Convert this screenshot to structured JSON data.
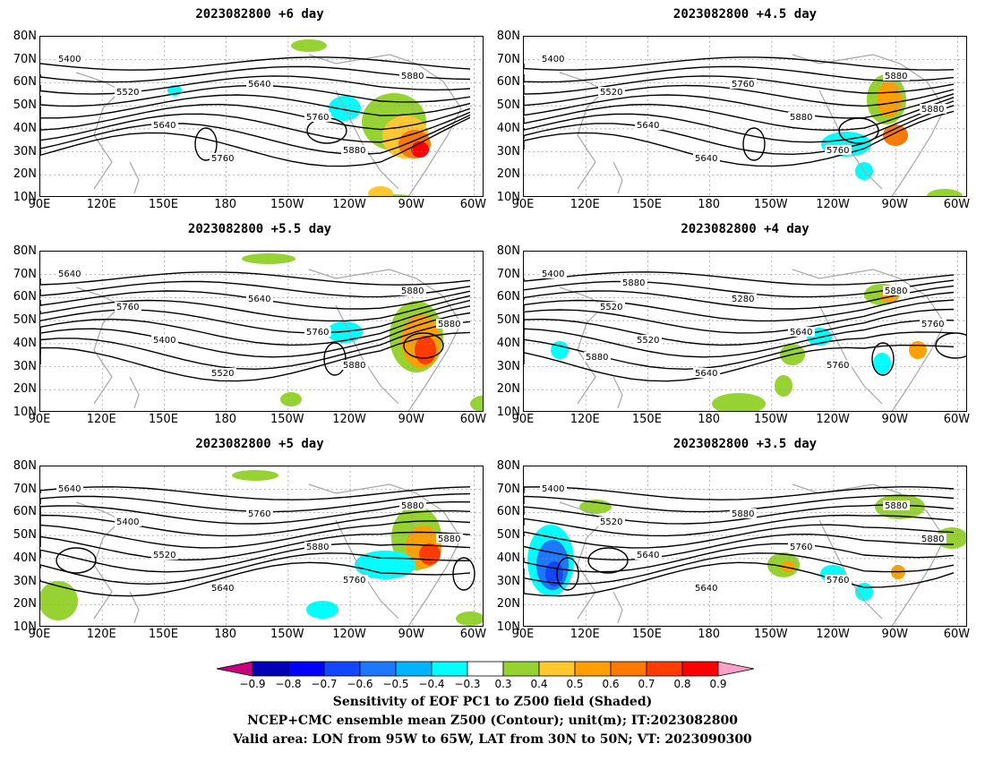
{
  "panels": [
    {
      "title": "2023082800  +6 day",
      "contour_labels": [
        "5400",
        "5520",
        "5640",
        "5760",
        "5640",
        "5760",
        "5880",
        "5880"
      ]
    },
    {
      "title": "2023082800  +4.5 day",
      "contour_labels": [
        "5400",
        "5520",
        "5640",
        "5640",
        "5760",
        "5880",
        "5760",
        "5880",
        "5880"
      ]
    },
    {
      "title": "2023082800  +5.5 day",
      "contour_labels": [
        "5640",
        "5760",
        "5400",
        "5520",
        "5640",
        "5760",
        "5880",
        "5880",
        "5880"
      ]
    },
    {
      "title": "2023082800  +4 day",
      "contour_labels": [
        "5400",
        "5520",
        "5520",
        "5640",
        "5280",
        "5640",
        "5760",
        "5880",
        "5760",
        "5880",
        "5880"
      ]
    },
    {
      "title": "2023082800  +5 day",
      "contour_labels": [
        "5640",
        "5400",
        "5520",
        "5640",
        "5760",
        "5880",
        "5760",
        "5880",
        "5880"
      ]
    },
    {
      "title": "2023082800  +3.5 day",
      "contour_labels": [
        "5400",
        "5520",
        "5640",
        "5640",
        "5880",
        "5760",
        "5760",
        "5880",
        "5880"
      ]
    }
  ],
  "lat_labels": [
    "80N",
    "70N",
    "60N",
    "50N",
    "40N",
    "30N",
    "20N",
    "10N"
  ],
  "lon_labels": [
    "90E",
    "120E",
    "150E",
    "180",
    "150W",
    "120W",
    "90W",
    "60W"
  ],
  "colorbar": {
    "labels": [
      "−0.9",
      "−0.8",
      "−0.7",
      "−0.6",
      "−0.5",
      "−0.4",
      "−0.3",
      "0.3",
      "0.4",
      "0.5",
      "0.6",
      "0.7",
      "0.8",
      "0.9"
    ],
    "colors": [
      "#c8007e",
      "#0000b4",
      "#0000ff",
      "#1446ff",
      "#1e78ff",
      "#00b4ff",
      "#00ffff",
      "#ffffff",
      "#96d232",
      "#ffc832",
      "#ffa000",
      "#ff7800",
      "#ff3c00",
      "#ff0000",
      "#ffa0c8"
    ]
  },
  "caption": {
    "line1": "Sensitivity of EOF PC1 to Z500 field (Shaded)",
    "line2": "NCEP+CMC ensemble mean Z500 (Contour); unit(m); IT:2023082800",
    "line3": "Valid area: LON from 95W to 65W, LAT from 30N to 50N; VT: 2023090300"
  }
}
